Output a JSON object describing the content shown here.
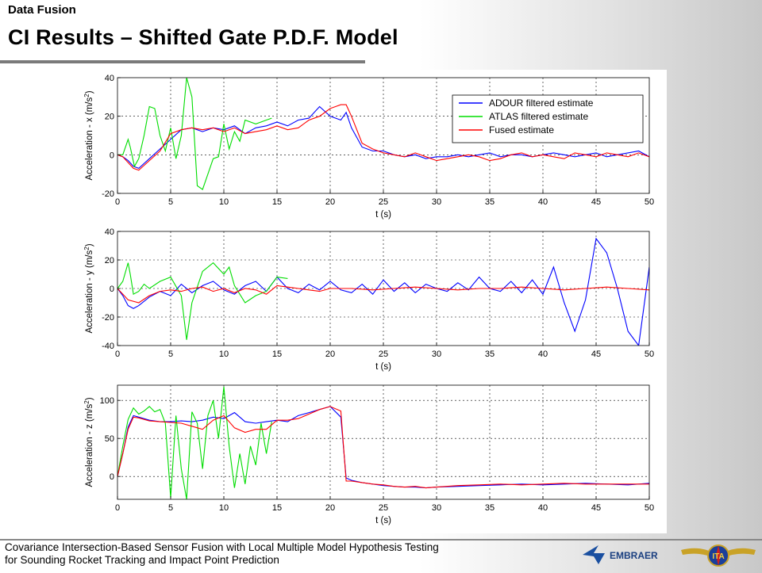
{
  "header": {
    "supertitle": "Data Fusion",
    "title": "CI Results – Shifted Gate P.D.F. Model"
  },
  "footer": {
    "line1": "Covariance Intersection-Based Sensor Fusion with Local Multiple Model Hypothesis Testing",
    "line2": "for Sounding Rocket Tracking and Impact Point Prediction",
    "logo1_text": "EMBRAER",
    "logo2_text": "ITA"
  },
  "icons": [
    "embraer-logo",
    "ita-wings-logo"
  ],
  "colors": {
    "adour": "#0000ff",
    "atlas": "#00dd00",
    "fused": "#ff0000"
  },
  "chart_data": [
    {
      "type": "line",
      "xlabel": "t (s)",
      "ylabel_main": "Acceleration - x (m/s",
      "ylabel_sup": "2",
      "ylabel_close": ")",
      "xlim": [
        0,
        50
      ],
      "ylim": [
        -20,
        40
      ],
      "xticks": [
        0,
        5,
        10,
        15,
        20,
        25,
        30,
        35,
        40,
        45,
        50
      ],
      "yticks": [
        -20,
        0,
        20,
        40
      ],
      "grid": true,
      "legend_position": "top-right",
      "legend": [
        "ADOUR filtered estimate",
        "ATLAS filtered estimate",
        "Fused estimate"
      ],
      "series": [
        {
          "name": "ADOUR filtered estimate",
          "color": "#0000ff",
          "x": [
            0,
            0.5,
            1,
            1.5,
            2,
            3,
            4,
            5,
            6,
            7,
            8,
            9,
            10,
            11,
            12,
            13,
            14,
            15,
            16,
            17,
            18,
            19,
            20,
            21,
            21.5,
            22,
            23,
            24,
            25,
            26,
            27,
            28,
            29,
            30,
            31,
            32,
            33,
            34,
            35,
            36,
            37,
            38,
            39,
            40,
            41,
            42,
            43,
            44,
            45,
            46,
            47,
            48,
            49,
            50
          ],
          "y": [
            0,
            -1,
            -3,
            -6,
            -7,
            -2,
            3,
            8,
            13,
            14,
            12,
            14,
            13,
            15,
            11,
            14,
            15,
            17,
            15,
            18,
            19,
            25,
            20,
            18,
            22,
            14,
            4,
            2,
            2,
            0,
            -1,
            0,
            -2,
            -1,
            -1,
            0,
            -1,
            0,
            1,
            -1,
            0,
            0,
            -1,
            0,
            1,
            0,
            -1,
            0,
            1,
            -1,
            0,
            1,
            2,
            -1
          ]
        },
        {
          "name": "ATLAS filtered estimate",
          "color": "#00dd00",
          "x": [
            0,
            0.5,
            1,
            1.2,
            1.6,
            2,
            2.5,
            3,
            3.5,
            4,
            4.5,
            5,
            5.5,
            6,
            6.5,
            7,
            7.5,
            8,
            8.5,
            9,
            9.5,
            10,
            10.5,
            11,
            11.5,
            12,
            13,
            14,
            14.5
          ],
          "y": [
            0,
            0,
            8,
            4,
            -6,
            -2,
            10,
            25,
            24,
            10,
            2,
            14,
            -2,
            10,
            40,
            30,
            -16,
            -18,
            -10,
            -2,
            -1,
            16,
            3,
            12,
            7,
            18,
            16,
            18,
            19
          ]
        },
        {
          "name": "Fused estimate",
          "color": "#ff0000",
          "x": [
            0,
            0.5,
            1,
            1.5,
            2,
            3,
            4,
            5,
            6,
            7,
            8,
            9,
            10,
            11,
            12,
            13,
            14,
            15,
            16,
            17,
            18,
            19,
            20,
            20.5,
            21,
            21.5,
            22,
            23,
            24,
            25,
            26,
            27,
            28,
            29,
            30,
            31,
            32,
            33,
            34,
            35,
            36,
            37,
            38,
            39,
            40,
            41,
            42,
            43,
            44,
            45,
            46,
            47,
            48,
            49,
            50
          ],
          "y": [
            0,
            -1,
            -4,
            -7,
            -8,
            -3,
            2,
            11,
            13,
            14,
            13,
            14,
            12,
            14,
            11,
            12,
            13,
            15,
            13,
            14,
            18,
            20,
            24,
            25,
            26,
            26,
            20,
            6,
            3,
            1,
            0,
            -1,
            1,
            -1,
            -3,
            -2,
            -1,
            0,
            -1,
            -3,
            -2,
            0,
            1,
            -1,
            0,
            -1,
            -2,
            1,
            0,
            -1,
            1,
            0,
            -1,
            1,
            -1
          ]
        }
      ]
    },
    {
      "type": "line",
      "xlabel": "t (s)",
      "ylabel_main": "Acceleration - y (m/s",
      "ylabel_sup": "2",
      "ylabel_close": ")",
      "xlim": [
        0,
        50
      ],
      "ylim": [
        -40,
        40
      ],
      "xticks": [
        0,
        5,
        10,
        15,
        20,
        25,
        30,
        35,
        40,
        45,
        50
      ],
      "yticks": [
        -40,
        -20,
        0,
        20,
        40
      ],
      "grid": true,
      "series": [
        {
          "name": "ADOUR filtered estimate",
          "color": "#0000ff",
          "x": [
            0,
            0.5,
            1,
            1.5,
            2,
            3,
            4,
            5,
            6,
            7,
            8,
            9,
            10,
            11,
            12,
            13,
            14,
            15,
            16,
            17,
            18,
            19,
            20,
            21,
            22,
            23,
            24,
            25,
            26,
            27,
            28,
            29,
            30,
            31,
            32,
            33,
            34,
            35,
            36,
            37,
            38,
            39,
            40,
            41,
            42,
            43,
            44,
            45,
            46,
            47,
            48,
            49,
            50
          ],
          "y": [
            0,
            -5,
            -12,
            -14,
            -12,
            -6,
            -2,
            -5,
            3,
            -3,
            2,
            5,
            -1,
            -4,
            2,
            5,
            -2,
            8,
            0,
            -3,
            3,
            -1,
            5,
            -1,
            -3,
            3,
            -4,
            6,
            -2,
            4,
            -3,
            3,
            0,
            -2,
            4,
            -1,
            8,
            0,
            -2,
            5,
            -3,
            6,
            -4,
            15,
            -10,
            -30,
            -8,
            35,
            25,
            0,
            -30,
            -40,
            15
          ]
        },
        {
          "name": "ATLAS filtered estimate",
          "color": "#00dd00",
          "x": [
            0,
            0.5,
            1,
            1.2,
            1.5,
            2,
            2.5,
            3,
            4,
            5,
            6,
            6.5,
            7,
            8,
            9,
            10,
            10.5,
            11,
            12,
            13,
            14,
            15,
            16
          ],
          "y": [
            0,
            5,
            18,
            10,
            -4,
            -2,
            3,
            0,
            5,
            8,
            -5,
            -36,
            -10,
            12,
            18,
            10,
            15,
            2,
            -10,
            -5,
            -2,
            8,
            7
          ]
        },
        {
          "name": "Fused estimate",
          "color": "#ff0000",
          "x": [
            0,
            1,
            2,
            3,
            4,
            5,
            6,
            7,
            8,
            9,
            10,
            11,
            12,
            13,
            14,
            15,
            16,
            17,
            18,
            19,
            20,
            22,
            24,
            26,
            28,
            30,
            32,
            34,
            36,
            38,
            40,
            42,
            44,
            46,
            48,
            50
          ],
          "y": [
            0,
            -8,
            -10,
            -5,
            -2,
            -1,
            -2,
            0,
            1,
            -2,
            0,
            -3,
            0,
            -1,
            -4,
            2,
            1,
            0,
            -1,
            -2,
            0,
            0,
            -1,
            0,
            1,
            0,
            -1,
            0,
            0,
            1,
            0,
            -1,
            0,
            1,
            0,
            -1
          ]
        }
      ]
    },
    {
      "type": "line",
      "xlabel": "t (s)",
      "ylabel_main": "Acceleration - z (m/s",
      "ylabel_sup": "2",
      "ylabel_close": ")",
      "xlim": [
        0,
        50
      ],
      "ylim": [
        -30,
        120
      ],
      "xticks": [
        0,
        5,
        10,
        15,
        20,
        25,
        30,
        35,
        40,
        45,
        50
      ],
      "yticks": [
        0,
        50,
        100
      ],
      "grid": true,
      "series": [
        {
          "name": "ADOUR filtered estimate",
          "color": "#0000ff",
          "x": [
            0,
            0.5,
            1,
            1.5,
            2,
            3,
            4,
            5,
            6,
            7,
            8,
            9,
            10,
            11,
            12,
            13,
            14,
            15,
            16,
            17,
            18,
            19,
            20,
            21,
            21.5,
            22,
            23,
            24,
            25,
            26,
            27,
            28,
            29,
            30,
            32,
            34,
            36,
            38,
            40,
            42,
            44,
            46,
            48,
            50
          ],
          "y": [
            0,
            30,
            65,
            80,
            78,
            74,
            72,
            72,
            73,
            72,
            74,
            78,
            76,
            84,
            72,
            70,
            72,
            74,
            72,
            80,
            84,
            88,
            92,
            78,
            -2,
            -5,
            -8,
            -10,
            -12,
            -13,
            -14,
            -14,
            -15,
            -14,
            -13,
            -12,
            -11,
            -10,
            -11,
            -10,
            -9,
            -10,
            -11,
            -9
          ]
        },
        {
          "name": "ATLAS filtered estimate",
          "color": "#00dd00",
          "x": [
            0,
            0.5,
            1,
            1.5,
            2,
            2.5,
            3,
            3.5,
            4,
            4.5,
            5,
            5.5,
            6,
            6.5,
            7,
            7.5,
            8,
            8.5,
            9,
            9.5,
            10,
            10.5,
            11,
            11.5,
            12,
            12.5,
            13,
            13.5,
            14,
            14.5
          ],
          "y": [
            0,
            40,
            75,
            90,
            82,
            86,
            92,
            85,
            88,
            70,
            -28,
            80,
            10,
            -30,
            85,
            70,
            10,
            80,
            100,
            50,
            118,
            40,
            -15,
            30,
            -10,
            40,
            15,
            70,
            30,
            72
          ]
        },
        {
          "name": "Fused estimate",
          "color": "#ff0000",
          "x": [
            0,
            0.5,
            1,
            1.5,
            2,
            3,
            4,
            5,
            6,
            7,
            8,
            9,
            10,
            11,
            12,
            13,
            14,
            15,
            16,
            17,
            18,
            19,
            20,
            21,
            21.5,
            22,
            23,
            24,
            25,
            26,
            27,
            28,
            29,
            30,
            32,
            34,
            36,
            38,
            40,
            42,
            44,
            46,
            48,
            50
          ],
          "y": [
            0,
            30,
            62,
            78,
            77,
            73,
            72,
            71,
            70,
            66,
            62,
            74,
            80,
            64,
            58,
            62,
            62,
            74,
            74,
            76,
            82,
            88,
            92,
            86,
            -6,
            -6,
            -8,
            -10,
            -11,
            -13,
            -14,
            -13,
            -15,
            -14,
            -12,
            -11,
            -10,
            -11,
            -10,
            -9,
            -10,
            -10,
            -10,
            -10
          ]
        }
      ]
    }
  ]
}
